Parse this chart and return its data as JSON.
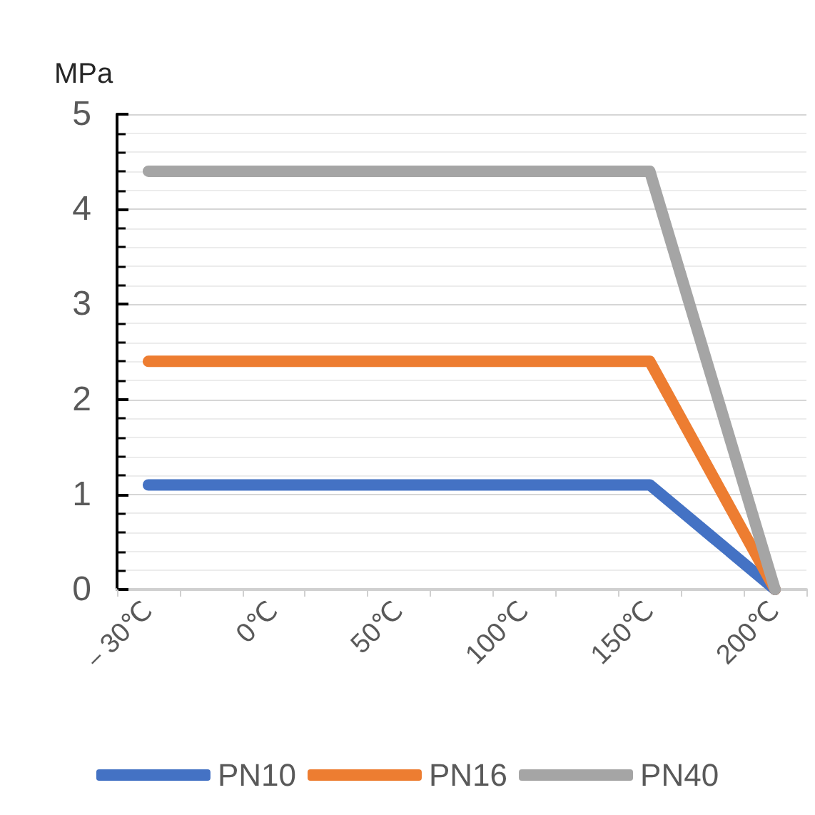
{
  "chart_data": {
    "type": "line",
    "ylabel": "MPa",
    "categories": [
      "－30℃",
      null,
      "0℃",
      null,
      "50℃",
      null,
      "100℃",
      null,
      "150℃",
      null,
      "200℃"
    ],
    "series": [
      {
        "name": "PN10",
        "color": "#4472c4",
        "values": [
          1.1,
          1.1,
          1.1,
          1.1,
          1.1,
          1.1,
          1.1,
          1.1,
          1.1,
          0.55,
          0
        ]
      },
      {
        "name": "PN16",
        "color": "#ed7d31",
        "values": [
          2.4,
          2.4,
          2.4,
          2.4,
          2.4,
          2.4,
          2.4,
          2.4,
          2.4,
          1.2,
          0
        ]
      },
      {
        "name": "PN40",
        "color": "#a5a5a5",
        "values": [
          4.4,
          4.4,
          4.4,
          4.4,
          4.4,
          4.4,
          4.4,
          4.4,
          4.4,
          2.2,
          0
        ]
      }
    ],
    "ylim": [
      0,
      5
    ],
    "yticks": [
      0,
      1,
      2,
      3,
      4,
      5
    ],
    "grid": "y",
    "legend": "bottom",
    "marker": "none",
    "line_style": "solid"
  }
}
